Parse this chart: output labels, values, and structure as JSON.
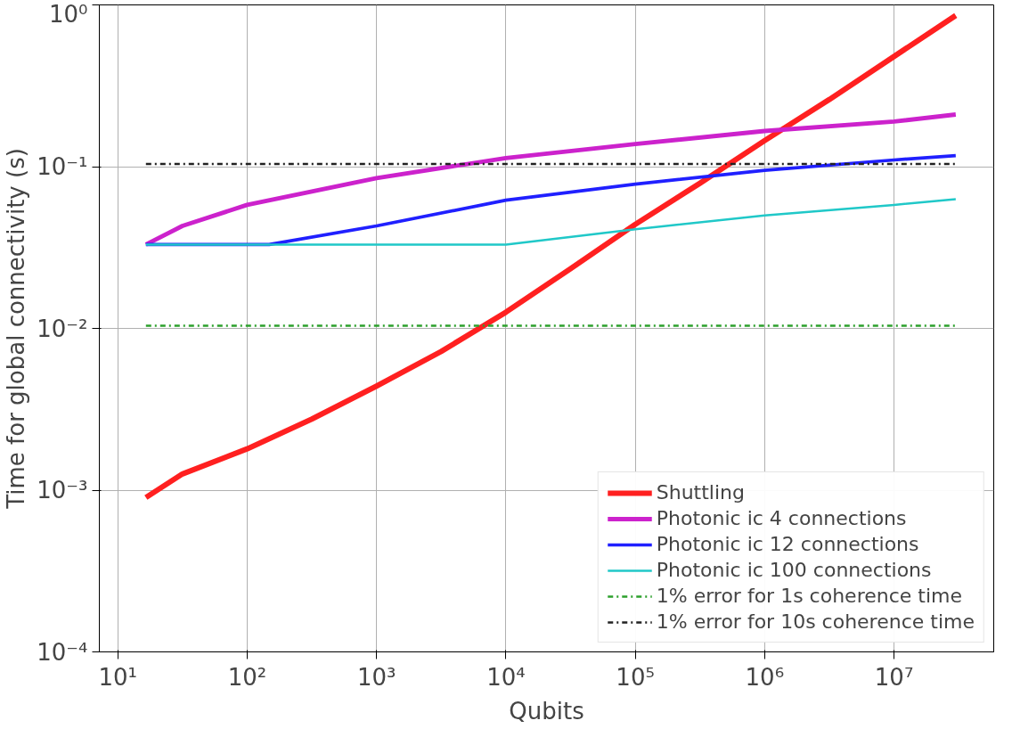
{
  "chart_data": {
    "type": "line",
    "xlabel": "Qubits",
    "ylabel": "Time for global connectivity (s)",
    "log": "xy",
    "grid": true,
    "legend": "bottom right",
    "xlim": [
      7.2,
      59000000.0
    ],
    "ylim": [
      0.0001,
      1
    ],
    "xticks": [
      {
        "value": 10,
        "label": "10¹"
      },
      {
        "value": 100,
        "label": "10²"
      },
      {
        "value": 1000,
        "label": "10³"
      },
      {
        "value": 10000,
        "label": "10⁴"
      },
      {
        "value": 100000,
        "label": "10⁵"
      },
      {
        "value": 1000000,
        "label": "10⁶"
      },
      {
        "value": 10000000,
        "label": "10⁷"
      }
    ],
    "yticks": [
      {
        "value": 0.0001,
        "label": "10⁻⁴"
      },
      {
        "value": 0.001,
        "label": "10⁻³"
      },
      {
        "value": 0.01,
        "label": "10⁻²"
      },
      {
        "value": 0.1,
        "label": "10⁻¹"
      },
      {
        "value": 1,
        "label": "10⁰"
      }
    ],
    "series": [
      {
        "name": "Shuttling",
        "color": "#ff2020",
        "x": [
          16.5,
          31.6,
          100,
          316,
          1000,
          3162,
          10000,
          31623,
          100000,
          316228,
          1000000,
          3162278,
          10000000,
          30000000
        ],
        "values": [
          0.0009,
          0.00126,
          0.0018,
          0.00275,
          0.0044,
          0.0072,
          0.0126,
          0.0234,
          0.044,
          0.079,
          0.145,
          0.26,
          0.48,
          0.86
        ]
      },
      {
        "name": "Photonic ic 4 connections",
        "color": "#cc22cc",
        "x": [
          16.5,
          31.6,
          100,
          1000,
          10000,
          100000,
          1000000,
          10000000,
          30000000
        ],
        "values": [
          0.033,
          0.043,
          0.058,
          0.085,
          0.113,
          0.138,
          0.166,
          0.19,
          0.21
        ]
      },
      {
        "name": "Photonic ic 12 connections",
        "color": "#2020ff",
        "x": [
          16.5,
          148,
          1000,
          10000,
          100000,
          1000000,
          10000000,
          30000000
        ],
        "values": [
          0.033,
          0.033,
          0.043,
          0.062,
          0.078,
          0.095,
          0.11,
          0.117
        ]
      },
      {
        "name": "Photonic ic 100 connections",
        "color": "#20c8c8",
        "x": [
          16.5,
          10000,
          100000,
          1000000,
          10000000,
          30000000
        ],
        "values": [
          0.033,
          0.033,
          0.041,
          0.05,
          0.058,
          0.063
        ]
      },
      {
        "name": "1% error for 1s coherence time",
        "color": "#2ca02c",
        "line_style": "dashdot",
        "x": [
          16.5,
          30000000
        ],
        "values": [
          0.0104,
          0.0104
        ]
      },
      {
        "name": "1% error for 10s coherence time",
        "color": "#222222",
        "line_style": "dashdot",
        "x": [
          16.5,
          30000000
        ],
        "values": [
          0.104,
          0.104
        ]
      }
    ]
  }
}
